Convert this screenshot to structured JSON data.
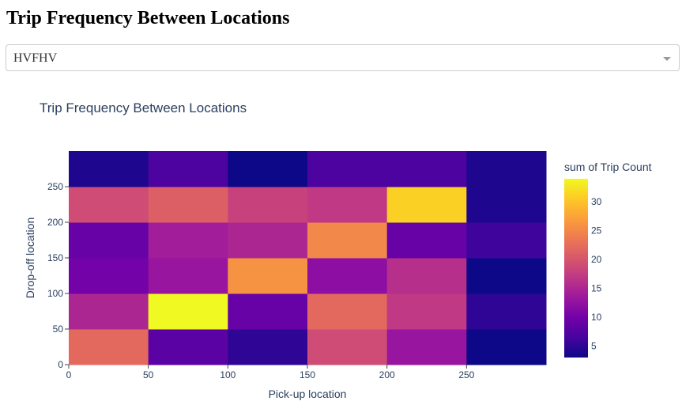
{
  "header": {
    "title": "Trip Frequency Between Locations"
  },
  "dropdown": {
    "selected": "HVFHV"
  },
  "colors": {
    "text": "#2a3f5f",
    "colorscale": [
      "#0d0887",
      "#46039f",
      "#7201a8",
      "#9c179e",
      "#bd3786",
      "#d8576b",
      "#ed7953",
      "#fb9f3a",
      "#fdca26",
      "#f0f921"
    ]
  },
  "chart_data": {
    "type": "heatmap",
    "title": "Trip Frequency Between Locations",
    "xlabel": "Pick-up location",
    "ylabel": "Drop-off location",
    "colorbar_title": "sum of Trip Count",
    "x_bin_edges": [
      0,
      50,
      100,
      150,
      200,
      250,
      300
    ],
    "y_bin_edges": [
      0,
      50,
      100,
      150,
      200,
      250,
      300
    ],
    "xlim": [
      0,
      300
    ],
    "ylim": [
      0,
      300
    ],
    "x_ticks": [
      0,
      50,
      100,
      150,
      200,
      250
    ],
    "y_ticks": [
      0,
      50,
      100,
      150,
      200,
      250
    ],
    "zlim": [
      3,
      34
    ],
    "colorbar_ticks": [
      5,
      10,
      15,
      20,
      25,
      30
    ],
    "z": [
      [
        22,
        8,
        5,
        19,
        13,
        3
      ],
      [
        15,
        34,
        9,
        22,
        17,
        5
      ],
      [
        10,
        13,
        26,
        12,
        16,
        3
      ],
      [
        9,
        14,
        15,
        25,
        9,
        6
      ],
      [
        19,
        21,
        18,
        17,
        31,
        4
      ],
      [
        4,
        7,
        3,
        7,
        7,
        4
      ]
    ]
  }
}
